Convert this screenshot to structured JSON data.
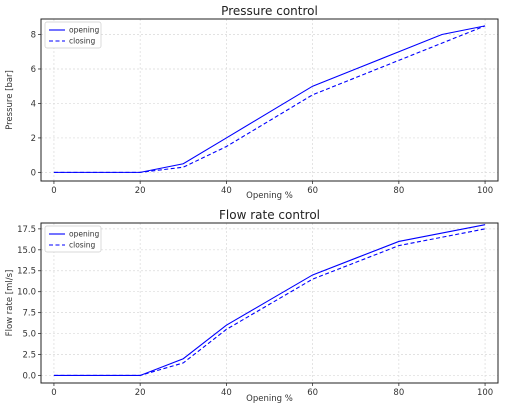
{
  "chart_data": [
    {
      "type": "line",
      "title": "Pressure control",
      "xlabel": "Opening %",
      "ylabel": "Pressure [bar]",
      "xlim": [
        -3,
        103
      ],
      "ylim": [
        -0.5,
        8.9
      ],
      "xticks": [
        0,
        20,
        40,
        60,
        80,
        100
      ],
      "yticks": [
        0,
        2,
        4,
        6,
        8
      ],
      "ytick_labels": [
        "0",
        "2",
        "4",
        "6",
        "8"
      ],
      "grid": true,
      "legend": "top-left",
      "series": [
        {
          "name": "opening",
          "style": "solid",
          "color": "#0000ff",
          "x": [
            0,
            20,
            30,
            40,
            50,
            60,
            70,
            80,
            90,
            100
          ],
          "y": [
            0,
            0,
            0.5,
            2.0,
            3.5,
            5.0,
            6.0,
            7.0,
            8.0,
            8.5
          ]
        },
        {
          "name": "closing",
          "style": "dashed",
          "color": "#0000ff",
          "x": [
            0,
            20,
            30,
            40,
            50,
            60,
            70,
            80,
            90,
            100
          ],
          "y": [
            0,
            0,
            0.3,
            1.5,
            3.0,
            4.5,
            5.5,
            6.5,
            7.5,
            8.5
          ]
        }
      ]
    },
    {
      "type": "line",
      "title": "Flow rate control",
      "xlabel": "Opening %",
      "ylabel": "Flow rate [ml/s]",
      "xlim": [
        -3,
        103
      ],
      "ylim": [
        -0.9,
        18.2
      ],
      "xticks": [
        0,
        20,
        40,
        60,
        80,
        100
      ],
      "yticks": [
        0,
        2.5,
        5,
        7.5,
        10,
        12.5,
        15,
        17.5
      ],
      "ytick_labels": [
        "0.0",
        "2.5",
        "5.0",
        "7.5",
        "10.0",
        "12.5",
        "15.0",
        "17.5"
      ],
      "grid": true,
      "legend": "top-left",
      "series": [
        {
          "name": "opening",
          "style": "solid",
          "color": "#0000ff",
          "x": [
            0,
            20,
            30,
            40,
            50,
            60,
            70,
            80,
            90,
            100
          ],
          "y": [
            0,
            0,
            2.0,
            6.0,
            9.0,
            12.0,
            14.0,
            16.0,
            17.0,
            18.0
          ]
        },
        {
          "name": "closing",
          "style": "dashed",
          "color": "#0000ff",
          "x": [
            0,
            20,
            30,
            40,
            50,
            60,
            70,
            80,
            90,
            100
          ],
          "y": [
            0,
            0,
            1.5,
            5.5,
            8.5,
            11.5,
            13.5,
            15.5,
            16.5,
            17.5
          ]
        }
      ]
    }
  ]
}
